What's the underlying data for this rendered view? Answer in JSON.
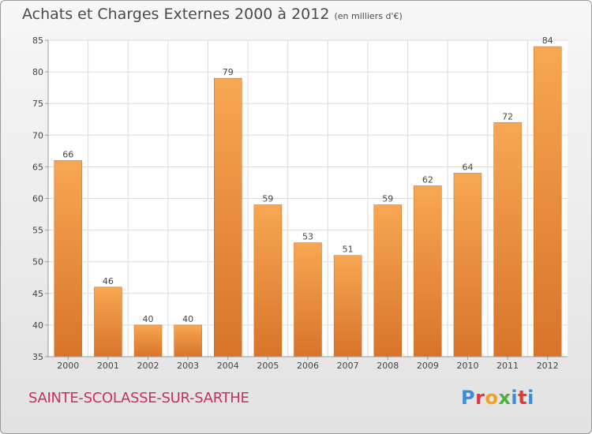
{
  "header": {
    "title": "Achats et Charges Externes 2000 à 2012",
    "subtitle": "(en milliers d'€)"
  },
  "footer": {
    "commune": "SAINTE-SCOLASSE-SUR-SARTHE",
    "brand": "Proxiti",
    "brand_colors": [
      "#3b8ed6",
      "#e0383b",
      "#f0a21e",
      "#4fae3c",
      "#3b8ed6",
      "#e0383b",
      "#3b8ed6"
    ]
  },
  "colors": {
    "bar_top": "#f7a752",
    "bar_bottom": "#d8742a",
    "grid": "#dcdcdc",
    "axis": "#9b9b9b",
    "text": "#444444",
    "commune": "#c8305f"
  },
  "chart_data": {
    "type": "bar",
    "title": "Achats et Charges Externes 2000 à 2012",
    "subtitle": "(en milliers d'€)",
    "categories": [
      "2000",
      "2001",
      "2002",
      "2003",
      "2004",
      "2005",
      "2006",
      "2007",
      "2008",
      "2009",
      "2010",
      "2011",
      "2012"
    ],
    "values": [
      66,
      46,
      40,
      40,
      79,
      59,
      53,
      51,
      59,
      62,
      64,
      72,
      84
    ],
    "ylim": [
      35,
      85
    ],
    "yticks": [
      35,
      40,
      45,
      50,
      55,
      60,
      65,
      70,
      75,
      80,
      85
    ],
    "grid": true,
    "legend": "none"
  }
}
